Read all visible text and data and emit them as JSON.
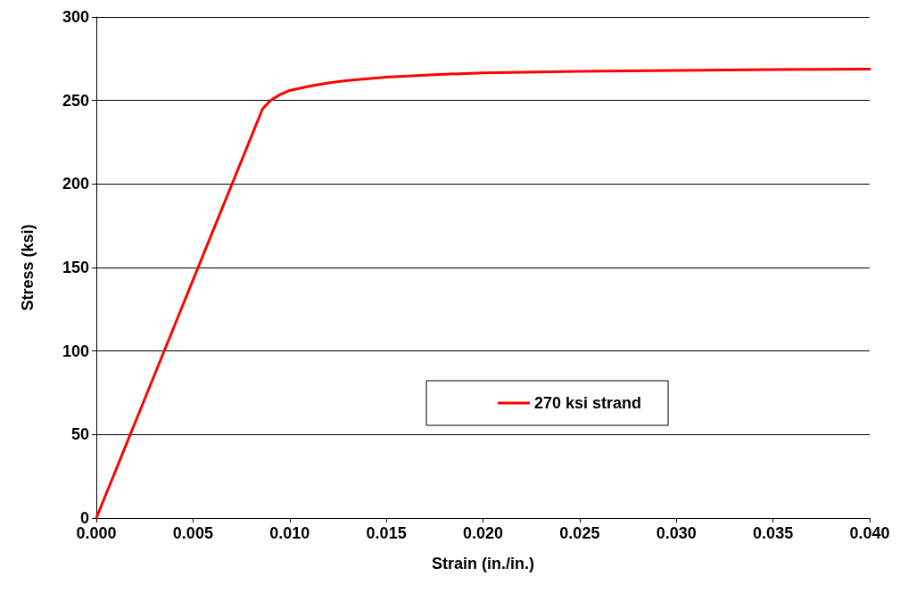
{
  "chart_data": {
    "type": "line",
    "xlabel": "Strain (in./in.)",
    "ylabel": "Stress (ksi)",
    "series": [
      {
        "name": "270 ksi strand",
        "color": "#ff0000",
        "x": [
          0,
          0.002,
          0.004,
          0.006,
          0.0086,
          0.009,
          0.0095,
          0.01,
          0.011,
          0.012,
          0.013,
          0.015,
          0.0175,
          0.02,
          0.025,
          0.03,
          0.035,
          0.04
        ],
        "values": [
          0,
          57,
          114,
          171,
          245,
          250,
          253.5,
          256,
          258.5,
          260.5,
          262,
          264,
          265.5,
          266.5,
          267.5,
          268,
          268.5,
          268.8
        ]
      }
    ],
    "xlim": [
      0,
      0.04
    ],
    "xticks": [
      {
        "value": 0,
        "label": "0.000"
      },
      {
        "value": 0.005,
        "label": "0.005"
      },
      {
        "value": 0.01,
        "label": "0.010"
      },
      {
        "value": 0.015,
        "label": "0.015"
      },
      {
        "value": 0.02,
        "label": "0.020"
      },
      {
        "value": 0.025,
        "label": "0.025"
      },
      {
        "value": 0.03,
        "label": "0.030"
      },
      {
        "value": 0.035,
        "label": "0.035"
      },
      {
        "value": 0.04,
        "label": "0.040"
      }
    ],
    "ylim": [
      0,
      300
    ],
    "yticks": [
      0,
      50,
      100,
      150,
      200,
      250,
      300
    ],
    "grid": "y",
    "legend": "bottom right",
    "marker": "none",
    "line_style": "solid"
  }
}
